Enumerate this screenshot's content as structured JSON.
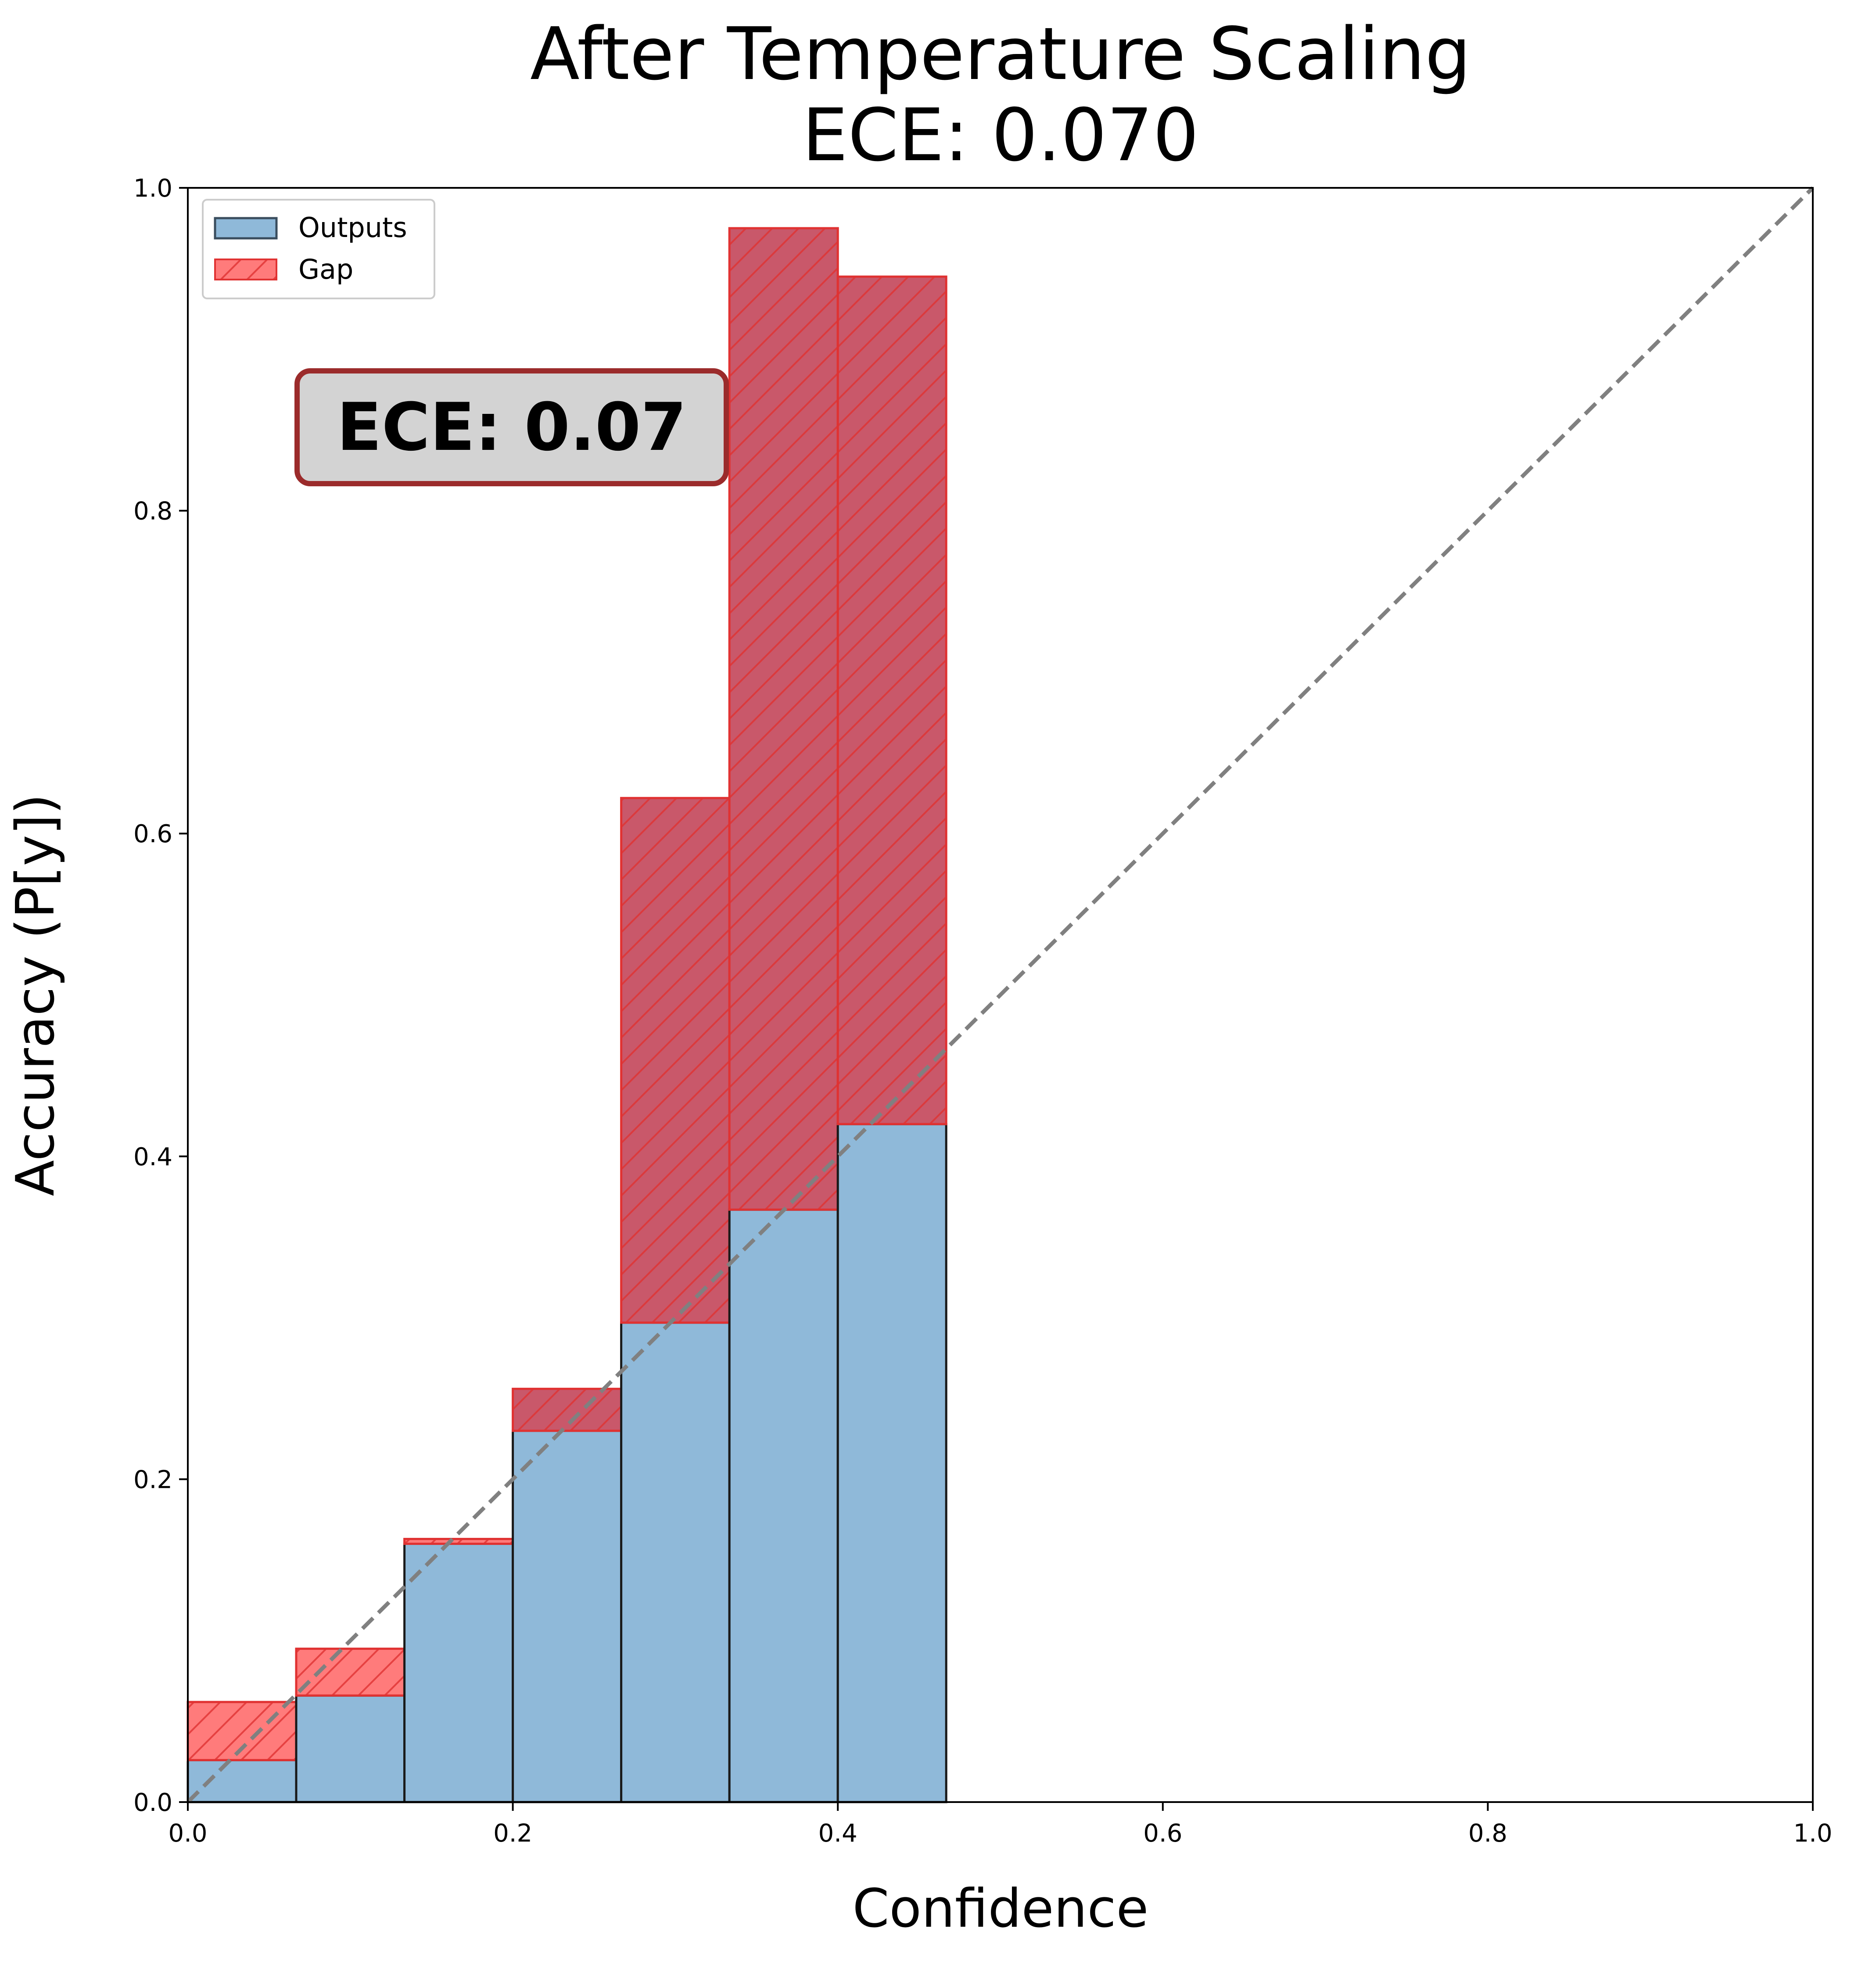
{
  "chart_data": {
    "type": "bar",
    "title": "After Temperature Scaling",
    "subtitle": "ECE: 0.070",
    "xlabel": "Confidence",
    "ylabel": "Accuracy (P[y])",
    "xlim": [
      0.0,
      1.0
    ],
    "ylim": [
      0.0,
      1.0
    ],
    "xticks": [
      "0.0",
      "0.2",
      "0.4",
      "0.6",
      "0.8",
      "1.0"
    ],
    "yticks": [
      "0.0",
      "0.2",
      "0.4",
      "0.6",
      "0.8",
      "1.0"
    ],
    "grid": false,
    "legend_position": "top-left",
    "bin_edges": [
      0.0,
      0.0667,
      0.1333,
      0.2,
      0.2667,
      0.3333,
      0.4,
      0.4667
    ],
    "series": [
      {
        "name": "Outputs",
        "color": "#8fb9d9",
        "edge_color": "#1a1a1a",
        "values": [
          0.026,
          0.066,
          0.16,
          0.23,
          0.297,
          0.367,
          0.42
        ]
      },
      {
        "name": "Gap",
        "color": "#ff7b7b",
        "overlap_color": "#c9586a",
        "edge_color": "#e03232",
        "hatch": "diagonal",
        "top_values": [
          0.062,
          0.095,
          0.163,
          0.256,
          0.622,
          0.975,
          0.945
        ]
      }
    ],
    "reference_line": {
      "from": [
        0.0,
        0.0
      ],
      "to": [
        1.0,
        1.0
      ],
      "style": "dashed",
      "color": "#808080"
    },
    "annotation": {
      "text": "ECE: 0.07",
      "box_face": "#d3d3d3",
      "box_edge": "#9b2b2b"
    }
  }
}
